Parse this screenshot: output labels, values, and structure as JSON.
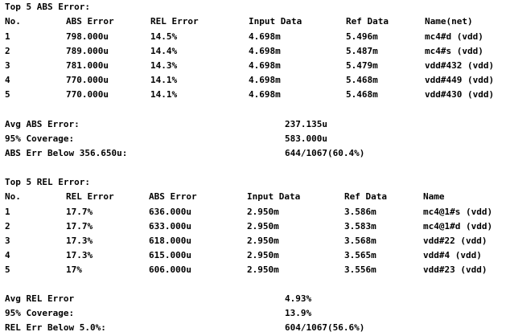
{
  "abs_section": {
    "title": "Top 5 ABS Error:",
    "headers": [
      "No.",
      "ABS Error",
      "REL Error",
      "Input Data",
      "Ref Data",
      "Name(net)"
    ],
    "rows": [
      [
        "1",
        "798.000u",
        "14.5%",
        "4.698m",
        "5.496m",
        "mc4#d (vdd)"
      ],
      [
        "2",
        "789.000u",
        "14.4%",
        "4.698m",
        "5.487m",
        "mc4#s (vdd)"
      ],
      [
        "3",
        "781.000u",
        "14.3%",
        "4.698m",
        "5.479m",
        "vdd#432 (vdd)"
      ],
      [
        "4",
        "770.000u",
        "14.1%",
        "4.698m",
        "5.468m",
        "vdd#449 (vdd)"
      ],
      [
        "5",
        "770.000u",
        "14.1%",
        "4.698m",
        "5.468m",
        "vdd#430 (vdd)"
      ]
    ],
    "summary": [
      {
        "label": "Avg ABS Error:",
        "value": "237.135u"
      },
      {
        "label": "95% Coverage:",
        "value": "583.000u"
      },
      {
        "label": "ABS Err Below 356.650u:",
        "value": "644/1067(60.4%)"
      }
    ]
  },
  "rel_section": {
    "title": "Top 5 REL Error:",
    "headers": [
      "No.",
      "REL Error",
      "ABS Error",
      "Input Data",
      "Ref Data",
      "Name"
    ],
    "rows": [
      [
        "1",
        "17.7%",
        "636.000u",
        "2.950m",
        "3.586m",
        "mc4@1#s (vdd)"
      ],
      [
        "2",
        "17.7%",
        "633.000u",
        "2.950m",
        "3.583m",
        "mc4@1#d (vdd)"
      ],
      [
        "3",
        "17.3%",
        "618.000u",
        "2.950m",
        "3.568m",
        "vdd#22 (vdd)"
      ],
      [
        "4",
        "17.3%",
        "615.000u",
        "2.950m",
        "3.565m",
        "vdd#4 (vdd)"
      ],
      [
        "5",
        "17%",
        "606.000u",
        "2.950m",
        "3.556m",
        "vdd#23 (vdd)"
      ]
    ],
    "summary": [
      {
        "label": "Avg REL Error",
        "value": "4.93%"
      },
      {
        "label": "95% Coverage:",
        "value": "13.9%"
      },
      {
        "label": "REL Err Below 5.0%:",
        "value": "604/1067(56.6%)"
      }
    ]
  }
}
